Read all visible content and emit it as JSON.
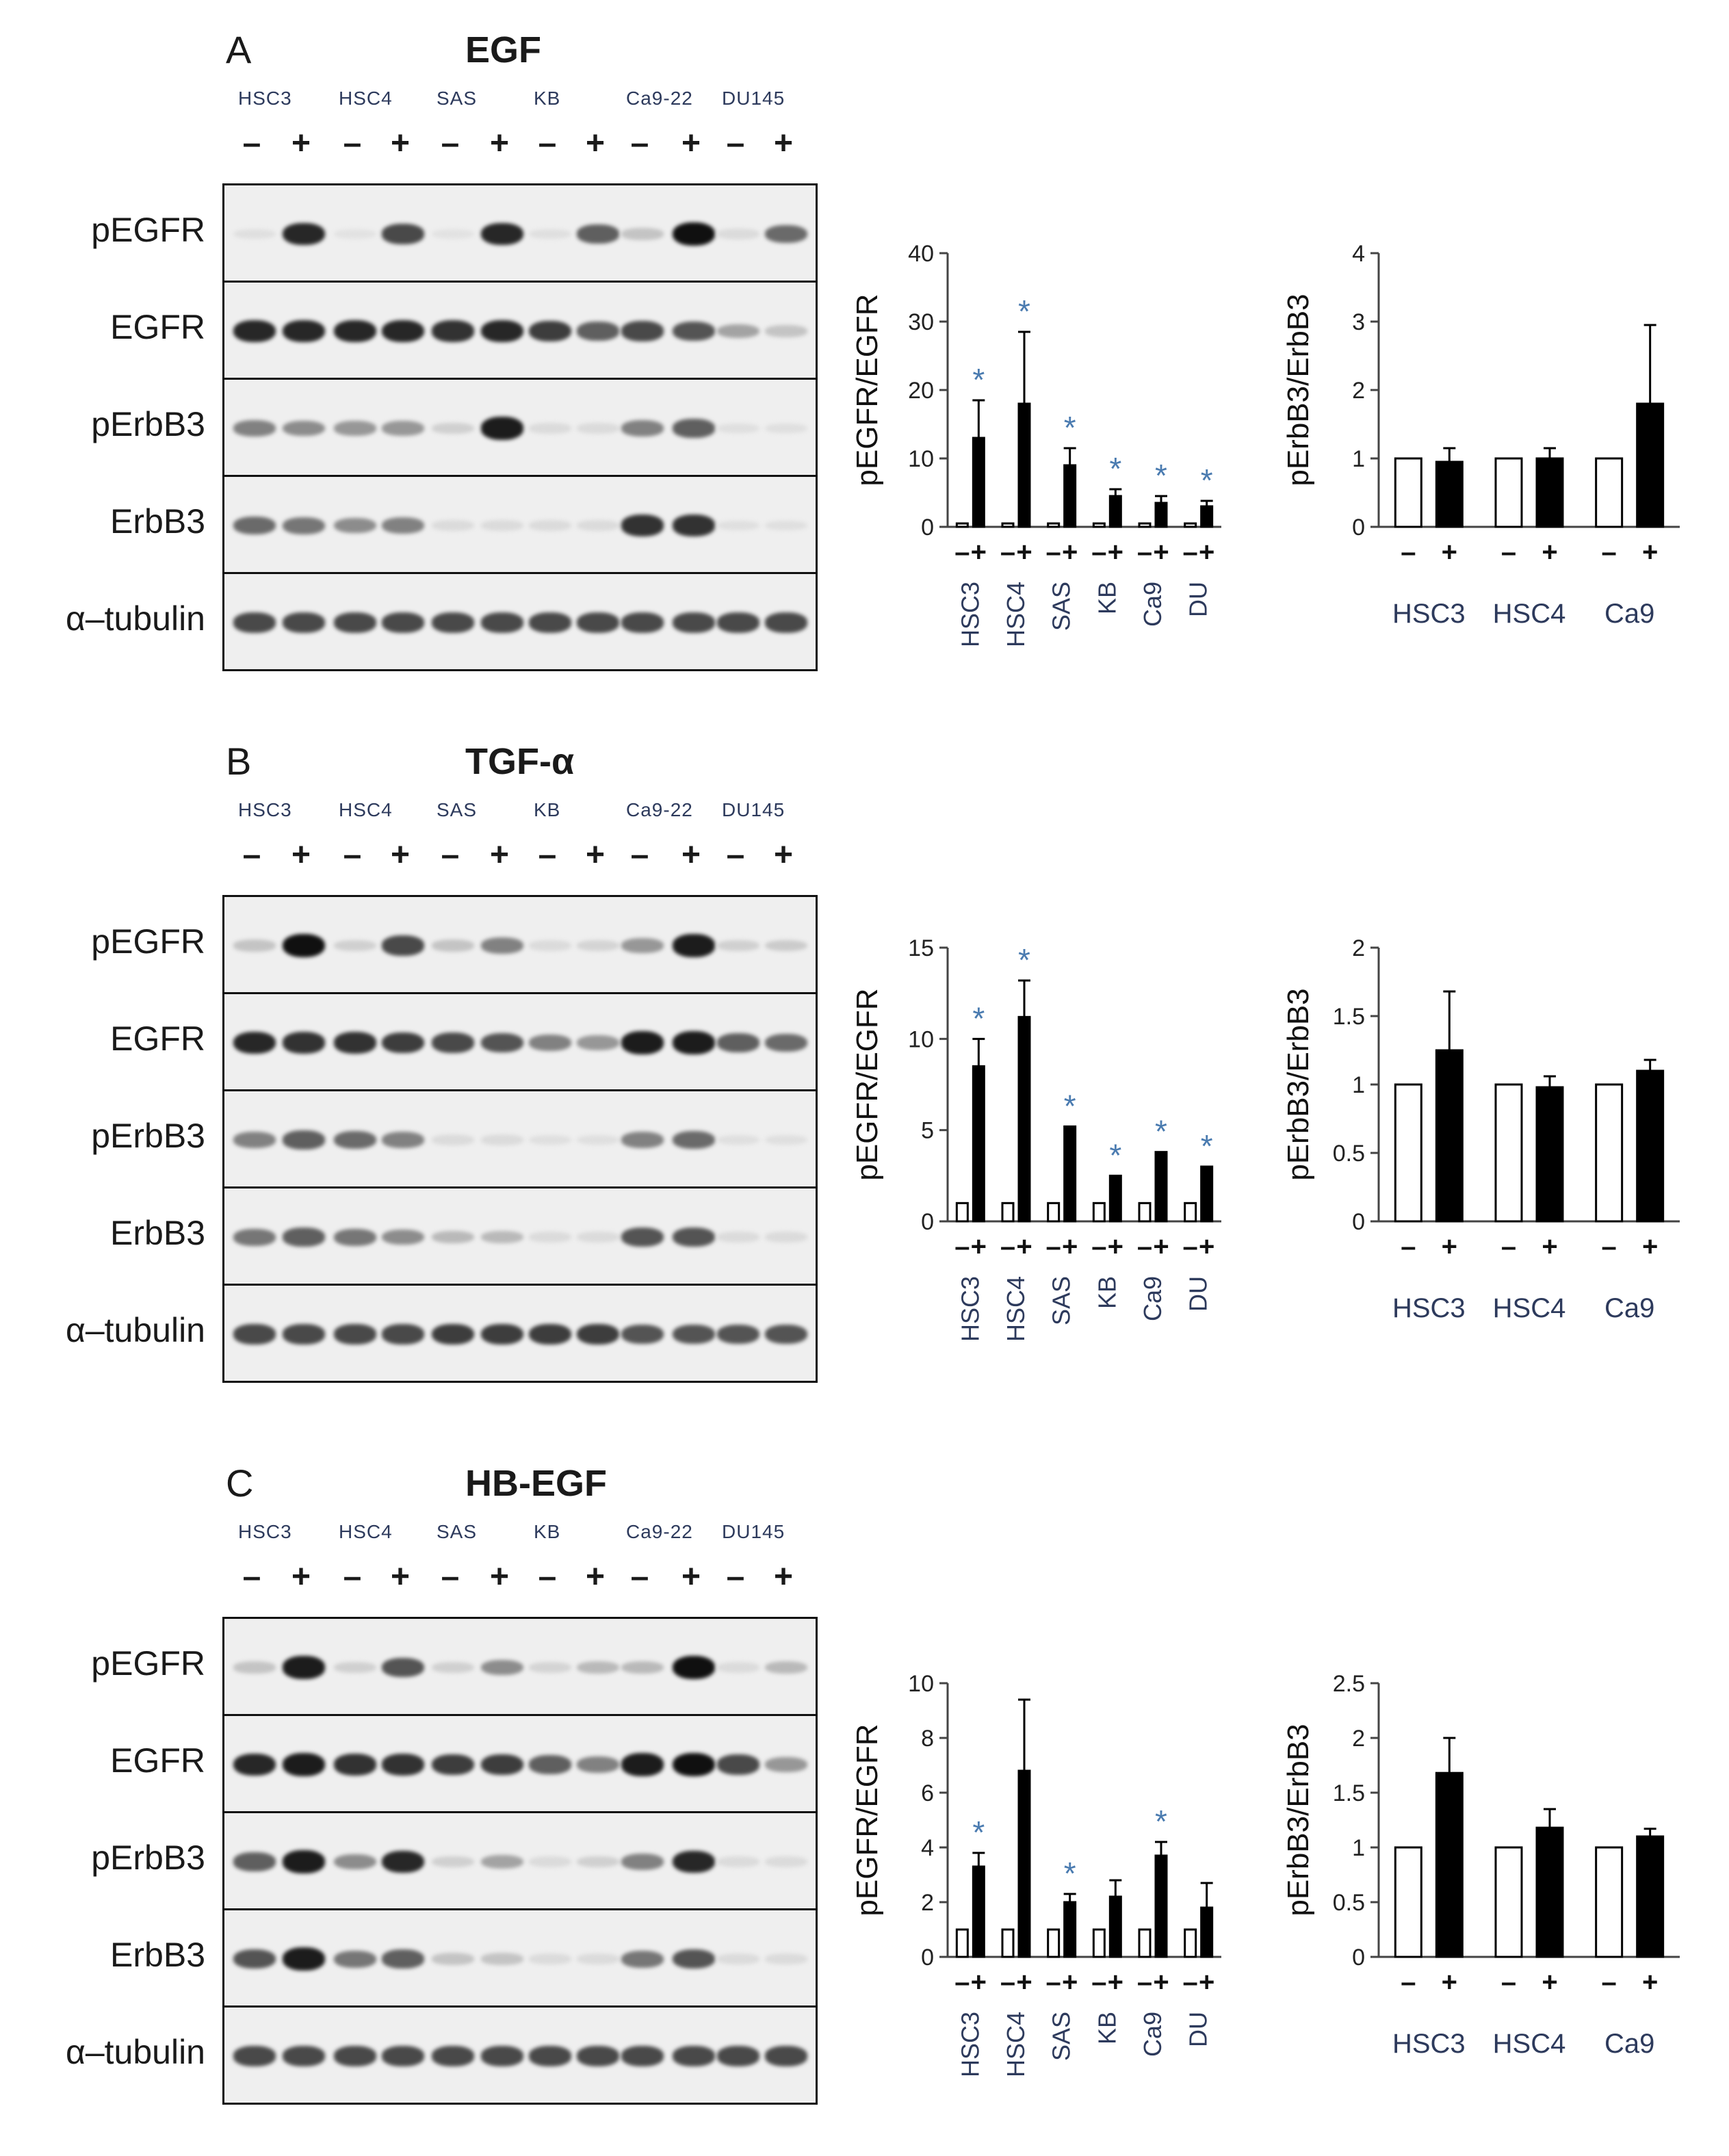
{
  "panels": [
    {
      "letter": "A",
      "title": "EGF",
      "cell_lines": [
        "HSC3",
        "HSC4",
        "SAS",
        "KB",
        "Ca9-22",
        "DU145"
      ],
      "signs": [
        "–",
        "+",
        "–",
        "+",
        "–",
        "+",
        "–",
        "+",
        "–",
        "+",
        "–",
        "+"
      ],
      "proteins": [
        "pEGFR",
        "EGFR",
        "pErbB3",
        "ErbB3",
        "α–tubulin"
      ],
      "blot_intensity": [
        [
          0.03,
          0.85,
          0.02,
          0.7,
          0.02,
          0.85,
          0.03,
          0.6,
          0.15,
          0.95,
          0.05,
          0.55
        ],
        [
          0.85,
          0.85,
          0.85,
          0.85,
          0.8,
          0.85,
          0.75,
          0.6,
          0.7,
          0.65,
          0.3,
          0.15
        ],
        [
          0.45,
          0.4,
          0.35,
          0.35,
          0.1,
          0.9,
          0.05,
          0.05,
          0.45,
          0.6,
          0.03,
          0.03
        ],
        [
          0.55,
          0.5,
          0.4,
          0.45,
          0.05,
          0.05,
          0.05,
          0.05,
          0.8,
          0.8,
          0.03,
          0.03
        ],
        [
          0.7,
          0.7,
          0.7,
          0.7,
          0.7,
          0.7,
          0.7,
          0.7,
          0.7,
          0.7,
          0.7,
          0.7
        ]
      ]
    },
    {
      "letter": "B",
      "title": "TGF-α",
      "cell_lines": [
        "HSC3",
        "HSC4",
        "SAS",
        "KB",
        "Ca9-22",
        "DU145"
      ],
      "signs": [
        "–",
        "+",
        "–",
        "+",
        "–",
        "+",
        "–",
        "+",
        "–",
        "+",
        "–",
        "+"
      ],
      "proteins": [
        "pEGFR",
        "EGFR",
        "pErbB3",
        "ErbB3",
        "α–tubulin"
      ],
      "blot_intensity": [
        [
          0.15,
          0.95,
          0.1,
          0.7,
          0.15,
          0.45,
          0.05,
          0.08,
          0.35,
          0.9,
          0.1,
          0.12
        ],
        [
          0.85,
          0.8,
          0.8,
          0.75,
          0.7,
          0.65,
          0.45,
          0.35,
          0.9,
          0.9,
          0.6,
          0.55
        ],
        [
          0.45,
          0.6,
          0.55,
          0.45,
          0.05,
          0.05,
          0.03,
          0.03,
          0.45,
          0.55,
          0.03,
          0.03
        ],
        [
          0.5,
          0.6,
          0.5,
          0.4,
          0.2,
          0.2,
          0.05,
          0.05,
          0.65,
          0.65,
          0.05,
          0.05
        ],
        [
          0.7,
          0.7,
          0.7,
          0.7,
          0.75,
          0.75,
          0.75,
          0.75,
          0.65,
          0.65,
          0.65,
          0.65
        ]
      ]
    },
    {
      "letter": "C",
      "title": "HB-EGF",
      "cell_lines": [
        "HSC3",
        "HSC4",
        "SAS",
        "KB",
        "Ca9-22",
        "DU145"
      ],
      "signs": [
        "–",
        "+",
        "–",
        "+",
        "–",
        "+",
        "–",
        "+",
        "–",
        "+",
        "–",
        "+"
      ],
      "proteins": [
        "pEGFR",
        "EGFR",
        "pErbB3",
        "ErbB3",
        "α–tubulin"
      ],
      "blot_intensity": [
        [
          0.15,
          0.9,
          0.1,
          0.65,
          0.1,
          0.4,
          0.08,
          0.2,
          0.2,
          0.95,
          0.05,
          0.2
        ],
        [
          0.85,
          0.9,
          0.8,
          0.8,
          0.75,
          0.75,
          0.6,
          0.45,
          0.9,
          0.95,
          0.7,
          0.35
        ],
        [
          0.6,
          0.9,
          0.4,
          0.85,
          0.1,
          0.3,
          0.05,
          0.1,
          0.45,
          0.85,
          0.05,
          0.05
        ],
        [
          0.65,
          0.9,
          0.5,
          0.6,
          0.15,
          0.15,
          0.05,
          0.05,
          0.5,
          0.65,
          0.05,
          0.05
        ],
        [
          0.7,
          0.7,
          0.7,
          0.7,
          0.7,
          0.7,
          0.7,
          0.7,
          0.7,
          0.7,
          0.7,
          0.7
        ]
      ]
    }
  ],
  "chart_data": [
    {
      "type": "bar",
      "panel": "A",
      "ylabel": "pEGFR/EGFR",
      "ylim": [
        0,
        40
      ],
      "yticks": [
        "0",
        "10",
        "20",
        "30",
        "40"
      ],
      "categories": [
        "HSC3",
        "HSC4",
        "SAS",
        "KB",
        "Ca9",
        "DU"
      ],
      "series": [
        {
          "values": [
            0.5,
            0.5,
            0.5,
            0.5,
            0.5,
            0.5
          ],
          "errors": [
            0,
            0,
            0,
            0,
            0,
            0
          ]
        },
        {
          "values": [
            13,
            18,
            9,
            4.5,
            3.5,
            3
          ],
          "errors": [
            5.5,
            10.5,
            2.5,
            1,
            1,
            0.8
          ]
        }
      ],
      "significance": [
        true,
        true,
        true,
        true,
        true,
        true
      ],
      "star": "*"
    },
    {
      "type": "bar",
      "panel": "A",
      "ylabel": "pErbB3/ErbB3",
      "ylim": [
        0,
        4
      ],
      "yticks": [
        "0",
        "1",
        "2",
        "3",
        "4"
      ],
      "categories": [
        "HSC3",
        "HSC4",
        "Ca9"
      ],
      "series": [
        {
          "values": [
            1,
            1,
            1
          ],
          "errors": [
            0,
            0,
            0
          ]
        },
        {
          "values": [
            0.95,
            1.0,
            1.8
          ],
          "errors": [
            0.2,
            0.15,
            1.15
          ]
        }
      ],
      "significance": [
        false,
        false,
        false
      ]
    },
    {
      "type": "bar",
      "panel": "B",
      "ylabel": "pEGFR/EGFR",
      "ylim": [
        0,
        15
      ],
      "yticks": [
        "0",
        "5",
        "10",
        "15"
      ],
      "categories": [
        "HSC3",
        "HSC4",
        "SAS",
        "KB",
        "Ca9",
        "DU"
      ],
      "series": [
        {
          "values": [
            1,
            1,
            1,
            1,
            1,
            1
          ],
          "errors": [
            0,
            0,
            0,
            0,
            0,
            0
          ]
        },
        {
          "values": [
            8.5,
            11.2,
            5.2,
            2.5,
            3.8,
            3.0
          ],
          "errors": [
            1.5,
            2,
            0,
            0,
            0,
            0
          ]
        }
      ],
      "significance": [
        true,
        true,
        true,
        true,
        true,
        true
      ],
      "star": "*"
    },
    {
      "type": "bar",
      "panel": "B",
      "ylabel": "pErbB3/ErbB3",
      "ylim": [
        0,
        2
      ],
      "yticks": [
        "0",
        "0.5",
        "1",
        "1.5",
        "2"
      ],
      "categories": [
        "HSC3",
        "HSC4",
        "Ca9"
      ],
      "series": [
        {
          "values": [
            1,
            1,
            1
          ],
          "errors": [
            0,
            0,
            0
          ]
        },
        {
          "values": [
            1.25,
            0.98,
            1.1
          ],
          "errors": [
            0.43,
            0.08,
            0.08
          ]
        }
      ],
      "significance": [
        false,
        false,
        false
      ]
    },
    {
      "type": "bar",
      "panel": "C",
      "ylabel": "pEGFR/EGFR",
      "ylim": [
        0,
        10
      ],
      "yticks": [
        "0",
        "2",
        "4",
        "6",
        "8",
        "10"
      ],
      "categories": [
        "HSC3",
        "HSC4",
        "SAS",
        "KB",
        "Ca9",
        "DU"
      ],
      "series": [
        {
          "values": [
            1,
            1,
            1,
            1,
            1,
            1
          ],
          "errors": [
            0,
            0,
            0,
            0,
            0,
            0
          ]
        },
        {
          "values": [
            3.3,
            6.8,
            2.0,
            2.2,
            3.7,
            1.8
          ],
          "errors": [
            0.5,
            2.6,
            0.3,
            0.6,
            0.5,
            0.9
          ]
        }
      ],
      "significance": [
        true,
        false,
        true,
        false,
        true,
        false
      ],
      "star": "*"
    },
    {
      "type": "bar",
      "panel": "C",
      "ylabel": "pErbB3/ErbB3",
      "ylim": [
        0,
        2.5
      ],
      "yticks": [
        "0",
        "0.5",
        "1",
        "1.5",
        "2",
        "2.5"
      ],
      "categories": [
        "HSC3",
        "HSC4",
        "Ca9"
      ],
      "series": [
        {
          "values": [
            1,
            1,
            1
          ],
          "errors": [
            0,
            0,
            0
          ]
        },
        {
          "values": [
            1.68,
            1.18,
            1.1
          ],
          "errors": [
            0.32,
            0.17,
            0.07
          ]
        }
      ],
      "significance": [
        false,
        false,
        false
      ]
    }
  ],
  "colors": {
    "filled_bar": "#000000",
    "open_bar": "#ffffff",
    "star": "#4a7bb0",
    "cell_label": "#2d3a5c"
  }
}
